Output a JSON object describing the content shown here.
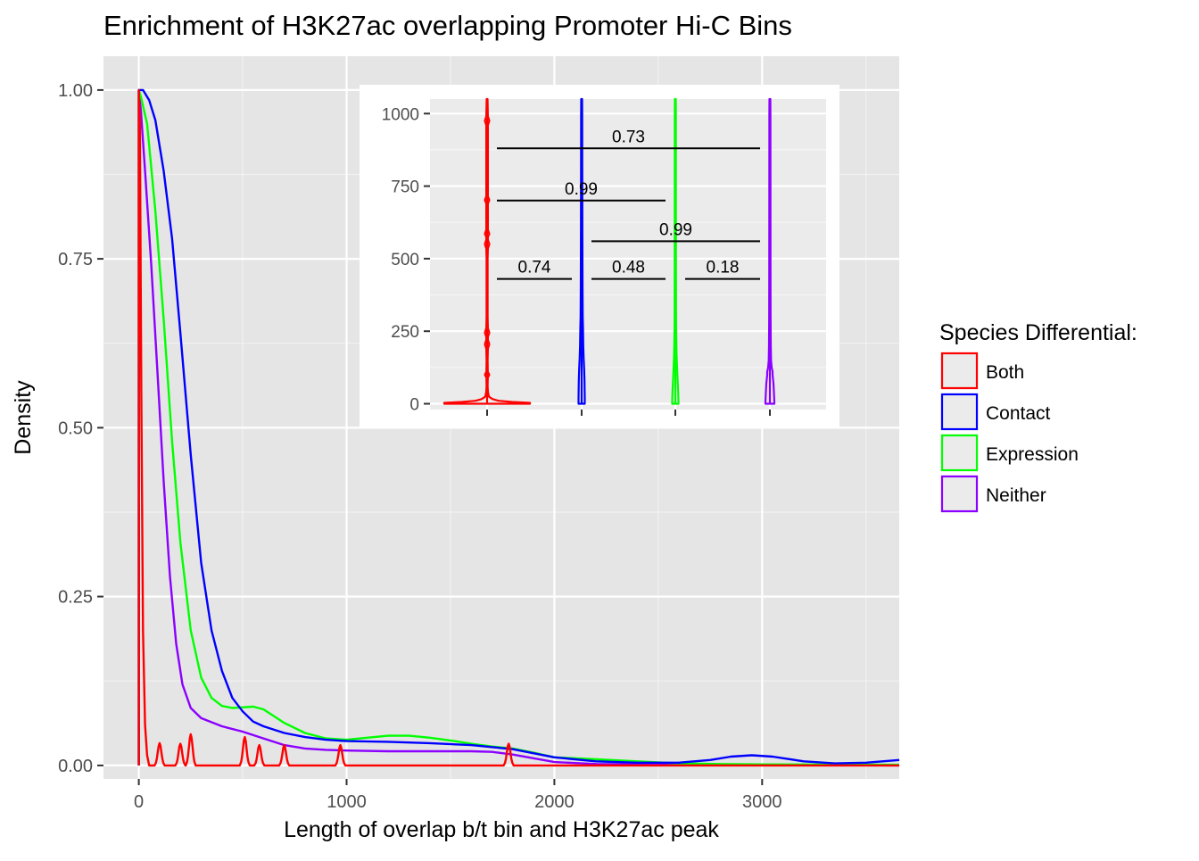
{
  "chart_data": [
    {
      "type": "line",
      "title": "Enrichment of H3K27ac overlapping Promoter Hi-C Bins",
      "xlabel": "Length of overlap b/t bin and H3K27ac peak",
      "ylabel": "Density",
      "xlim": [
        -170,
        3660
      ],
      "ylim": [
        -0.02,
        1.05
      ],
      "x_ticks": [
        0,
        1000,
        2000,
        3000
      ],
      "x_tick_labels": [
        "0",
        "1000",
        "2000",
        "3000"
      ],
      "y_ticks": [
        0,
        0.25,
        0.5,
        0.75,
        1.0
      ],
      "y_tick_labels": [
        "0.00",
        "0.25",
        "0.50",
        "0.75",
        "1.00"
      ],
      "grid": true,
      "legend": {
        "title": "Species Differential:",
        "placement": "right",
        "entries": [
          "Both",
          "Contact",
          "Expression",
          "Neither"
        ]
      },
      "series": [
        {
          "name": "Both",
          "color": "#ff0000",
          "points": [
            [
              0,
              0
            ],
            [
              0,
              1.0
            ],
            [
              5,
              0.95
            ],
            [
              12,
              0.55
            ],
            [
              20,
              0.2
            ],
            [
              30,
              0.06
            ],
            [
              40,
              0.015
            ],
            [
              50,
              0
            ]
          ],
          "spikes": [
            [
              100,
              0.033
            ],
            [
              200,
              0.032
            ],
            [
              250,
              0.046
            ],
            [
              510,
              0.042
            ],
            [
              580,
              0.03
            ],
            [
              700,
              0.03
            ],
            [
              970,
              0.03
            ],
            [
              1780,
              0.032
            ]
          ],
          "spike_width": 22
        },
        {
          "name": "Contact",
          "color": "#0000ff",
          "points": [
            [
              0,
              0
            ],
            [
              0,
              1.0
            ],
            [
              20,
              1.0
            ],
            [
              50,
              0.985
            ],
            [
              80,
              0.955
            ],
            [
              120,
              0.88
            ],
            [
              160,
              0.78
            ],
            [
              200,
              0.64
            ],
            [
              250,
              0.46
            ],
            [
              300,
              0.3
            ],
            [
              350,
              0.2
            ],
            [
              400,
              0.14
            ],
            [
              450,
              0.1
            ],
            [
              500,
              0.08
            ],
            [
              550,
              0.065
            ],
            [
              600,
              0.058
            ],
            [
              700,
              0.048
            ],
            [
              800,
              0.042
            ],
            [
              900,
              0.038
            ],
            [
              1000,
              0.036
            ],
            [
              1200,
              0.035
            ],
            [
              1400,
              0.033
            ],
            [
              1600,
              0.03
            ],
            [
              1800,
              0.024
            ],
            [
              2000,
              0.012
            ],
            [
              2200,
              0.006
            ],
            [
              2400,
              0.004
            ],
            [
              2600,
              0.004
            ],
            [
              2750,
              0.008
            ],
            [
              2850,
              0.013
            ],
            [
              2950,
              0.015
            ],
            [
              3050,
              0.013
            ],
            [
              3200,
              0.006
            ],
            [
              3350,
              0.003
            ],
            [
              3500,
              0.004
            ],
            [
              3660,
              0.008
            ]
          ]
        },
        {
          "name": "Expression",
          "color": "#00ff00",
          "points": [
            [
              0,
              0
            ],
            [
              0,
              1.0
            ],
            [
              10,
              0.99
            ],
            [
              40,
              0.95
            ],
            [
              80,
              0.82
            ],
            [
              120,
              0.66
            ],
            [
              160,
              0.48
            ],
            [
              200,
              0.33
            ],
            [
              250,
              0.2
            ],
            [
              300,
              0.13
            ],
            [
              350,
              0.1
            ],
            [
              400,
              0.088
            ],
            [
              450,
              0.085
            ],
            [
              500,
              0.086
            ],
            [
              550,
              0.087
            ],
            [
              600,
              0.083
            ],
            [
              650,
              0.073
            ],
            [
              700,
              0.063
            ],
            [
              800,
              0.048
            ],
            [
              900,
              0.04
            ],
            [
              1000,
              0.038
            ],
            [
              1100,
              0.041
            ],
            [
              1200,
              0.044
            ],
            [
              1300,
              0.044
            ],
            [
              1400,
              0.041
            ],
            [
              1500,
              0.037
            ],
            [
              1600,
              0.032
            ],
            [
              1700,
              0.028
            ],
            [
              1800,
              0.025
            ],
            [
              1900,
              0.019
            ],
            [
              2000,
              0.012
            ],
            [
              2200,
              0.009
            ],
            [
              2400,
              0.006
            ],
            [
              2600,
              0.003
            ],
            [
              2800,
              0.002
            ],
            [
              3000,
              0.0015
            ],
            [
              3660,
              0.001
            ]
          ]
        },
        {
          "name": "Neither",
          "color": "#8b00ff",
          "points": [
            [
              0,
              0
            ],
            [
              0,
              1.0
            ],
            [
              10,
              0.97
            ],
            [
              30,
              0.88
            ],
            [
              60,
              0.74
            ],
            [
              90,
              0.58
            ],
            [
              120,
              0.42
            ],
            [
              150,
              0.28
            ],
            [
              180,
              0.18
            ],
            [
              210,
              0.12
            ],
            [
              250,
              0.085
            ],
            [
              300,
              0.07
            ],
            [
              400,
              0.058
            ],
            [
              500,
              0.05
            ],
            [
              600,
              0.04
            ],
            [
              700,
              0.03
            ],
            [
              800,
              0.025
            ],
            [
              900,
              0.023
            ],
            [
              1000,
              0.022
            ],
            [
              1200,
              0.021
            ],
            [
              1400,
              0.021
            ],
            [
              1600,
              0.021
            ],
            [
              1700,
              0.02
            ],
            [
              1800,
              0.016
            ],
            [
              2000,
              0.005
            ],
            [
              2200,
              0.002
            ],
            [
              2600,
              0.001
            ],
            [
              3660,
              0
            ]
          ]
        }
      ]
    },
    {
      "type": "violin",
      "xlabel": "",
      "ylabel": "",
      "ylim": [
        -20,
        1050
      ],
      "y_ticks": [
        0,
        250,
        500,
        750,
        1000
      ],
      "y_tick_labels": [
        "0",
        "250",
        "500",
        "750",
        "1000"
      ],
      "grid": true,
      "categories": [
        "Both",
        "Contact",
        "Expression",
        "Neither"
      ],
      "violins": [
        {
          "name": "Both",
          "color": "#ff0000",
          "profile": [
            [
              0,
              48
            ],
            [
              3,
              48
            ],
            [
              6,
              28
            ],
            [
              10,
              13
            ],
            [
              15,
              7
            ],
            [
              20,
              4
            ],
            [
              25,
              2
            ],
            [
              40,
              1
            ],
            [
              60,
              0.6
            ],
            [
              90,
              0.8
            ],
            [
              100,
              2.5
            ],
            [
              110,
              0.8
            ],
            [
              150,
              0.6
            ],
            [
              190,
              0.9
            ],
            [
              205,
              2.5
            ],
            [
              220,
              0.9
            ],
            [
              230,
              0.9
            ],
            [
              245,
              2.5
            ],
            [
              260,
              0.9
            ],
            [
              300,
              0.6
            ],
            [
              500,
              0.6
            ],
            [
              535,
              0.9
            ],
            [
              550,
              2.5
            ],
            [
              565,
              0.9
            ],
            [
              575,
              0.9
            ],
            [
              585,
              2.5
            ],
            [
              600,
              0.9
            ],
            [
              690,
              0.9
            ],
            [
              702,
              2.5
            ],
            [
              715,
              0.9
            ],
            [
              960,
              0.9
            ],
            [
              975,
              2.5
            ],
            [
              990,
              0.9
            ],
            [
              1050,
              0.5
            ]
          ]
        },
        {
          "name": "Contact",
          "color": "#0000ff",
          "profile": [
            [
              0,
              3.5
            ],
            [
              5,
              3.5
            ],
            [
              20,
              3.5
            ],
            [
              40,
              3.4
            ],
            [
              80,
              3.2
            ],
            [
              120,
              2.8
            ],
            [
              160,
              2.2
            ],
            [
              200,
              1.8
            ],
            [
              260,
              1.5
            ],
            [
              300,
              1.2
            ],
            [
              400,
              1.0
            ],
            [
              600,
              0.8
            ],
            [
              800,
              0.7
            ],
            [
              1000,
              0.6
            ],
            [
              1050,
              0.5
            ]
          ]
        },
        {
          "name": "Expression",
          "color": "#00ff00",
          "profile": [
            [
              0,
              3.5
            ],
            [
              5,
              3.5
            ],
            [
              20,
              3.4
            ],
            [
              40,
              3.2
            ],
            [
              80,
              2.6
            ],
            [
              120,
              2.0
            ],
            [
              160,
              1.5
            ],
            [
              200,
              1.2
            ],
            [
              260,
              0.9
            ],
            [
              300,
              0.8
            ],
            [
              500,
              0.7
            ],
            [
              1000,
              0.6
            ],
            [
              1050,
              0.5
            ]
          ]
        },
        {
          "name": "Neither",
          "color": "#8b00ff",
          "profile": [
            [
              0,
              5
            ],
            [
              5,
              5
            ],
            [
              20,
              4.8
            ],
            [
              40,
              4.5
            ],
            [
              70,
              4
            ],
            [
              100,
              3
            ],
            [
              110,
              3
            ],
            [
              125,
              2
            ],
            [
              150,
              1.3
            ],
            [
              200,
              1.0
            ],
            [
              300,
              0.8
            ],
            [
              500,
              0.7
            ],
            [
              1000,
              0.6
            ],
            [
              1050,
              0.5
            ]
          ]
        }
      ],
      "comparisons": [
        {
          "from": 1,
          "to": 2,
          "y": 430,
          "label": "0.74"
        },
        {
          "from": 2,
          "to": 3,
          "y": 430,
          "label": "0.48"
        },
        {
          "from": 3,
          "to": 4,
          "y": 430,
          "label": "0.18"
        },
        {
          "from": 2,
          "to": 4,
          "y": 560,
          "label": "0.99"
        },
        {
          "from": 1,
          "to": 3,
          "y": 700,
          "label": "0.99"
        },
        {
          "from": 1,
          "to": 4,
          "y": 880,
          "label": "0.73"
        }
      ]
    }
  ]
}
